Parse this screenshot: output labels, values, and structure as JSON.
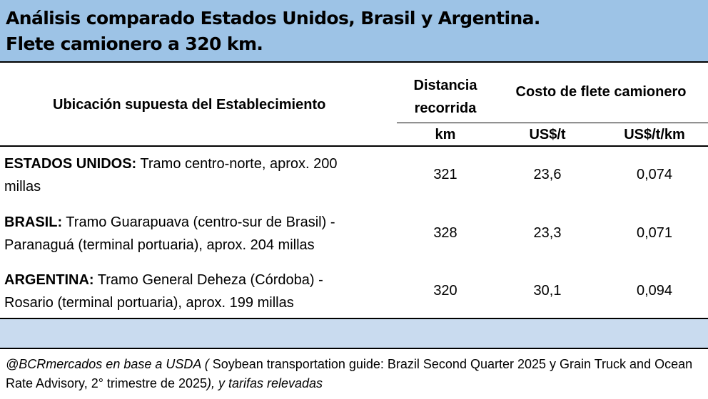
{
  "title": {
    "line1": "Análisis comparado Estados Unidos, Brasil y Argentina.",
    "line2": "Flete camionero a 320 km."
  },
  "header": {
    "location": "Ubicación supuesta del Establecimiento",
    "distance_line1": "Distancia",
    "distance_line2": "recorrida",
    "cost": "Costo de flete camionero",
    "unit_km": "km",
    "unit_ust": "US$/t",
    "unit_ustkm": "US$/t/km"
  },
  "rows": [
    {
      "country": "ESTADOS UNIDOS:",
      "desc_line1": " Tramo centro-norte, aprox. 200",
      "desc_line2": "millas",
      "km": "321",
      "ust": "23,6",
      "ustkm": "0,074"
    },
    {
      "country": "BRASIL:",
      "desc_line1": " Tramo Guarapuava (centro-sur de Brasil) -",
      "desc_line2": "Paranaguá (terminal portuaria), aprox. 204 millas",
      "km": "328",
      "ust": "23,3",
      "ustkm": "0,071"
    },
    {
      "country": "ARGENTINA:",
      "desc_line1": " Tramo General Deheza (Córdoba) -",
      "desc_line2": "Rosario (terminal portuaria), aprox. 199 millas",
      "km": "320",
      "ust": "30,1",
      "ustkm": "0,094"
    }
  ],
  "source": {
    "part1": "@BCRmercados en base a USDA (",
    "part2": " Soybean transportation guide: Brazil Second Quarter 2025 y Grain Truck and Ocean Rate Advisory, 2° trimestre de 2025",
    "part3": "), y tarifas relevadas"
  }
}
